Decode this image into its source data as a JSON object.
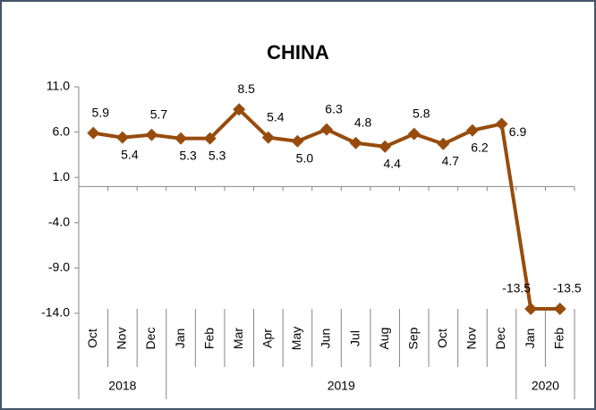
{
  "chart_data": {
    "type": "line",
    "title": "CHINA",
    "categories": [
      "Oct",
      "Nov",
      "Dec",
      "Jan",
      "Feb",
      "Mar",
      "Apr",
      "May",
      "Jun",
      "Jul",
      "Aug",
      "Sep",
      "Oct",
      "Nov",
      "Dec",
      "Jan",
      "Feb"
    ],
    "groups": [
      {
        "label": "2018",
        "size": 3
      },
      {
        "label": "2019",
        "size": 12
      },
      {
        "label": "2020",
        "size": 2
      }
    ],
    "series": [
      {
        "name": "China",
        "color": "#974c0d",
        "values": [
          5.9,
          5.4,
          5.7,
          5.3,
          5.3,
          8.5,
          5.4,
          5.0,
          6.3,
          4.8,
          4.4,
          5.8,
          4.7,
          6.2,
          6.9,
          -13.5,
          -13.5
        ],
        "value_labels": [
          "5.9",
          "5.4",
          "5.7",
          "5.3",
          "5.3",
          "8.5",
          "5.4",
          "5.0",
          "6.3",
          "4.8",
          "4.4",
          "5.8",
          "4.7",
          "6.2",
          "6.9",
          "-13.5",
          "-13.5"
        ]
      }
    ],
    "ylim": [
      -14,
      11
    ],
    "yticks": [
      {
        "value": 11,
        "label": "11.0"
      },
      {
        "value": 6,
        "label": "6.0"
      },
      {
        "value": 1,
        "label": "1.0"
      },
      {
        "value": -4,
        "label": "-4.0"
      },
      {
        "value": -9,
        "label": "-9.0"
      },
      {
        "value": -14,
        "label": "-14.0"
      }
    ],
    "grid": false
  }
}
